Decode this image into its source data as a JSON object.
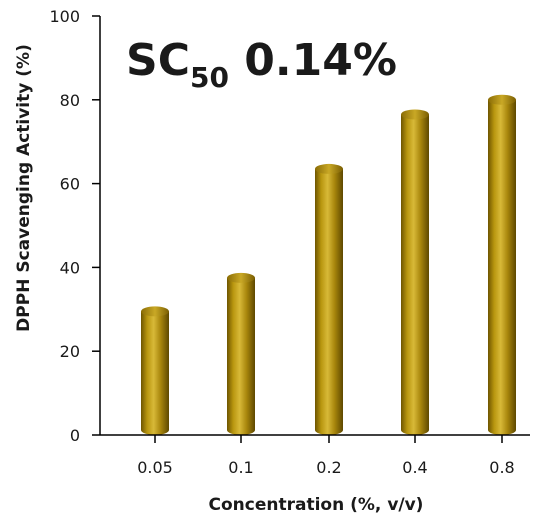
{
  "chart_data": {
    "type": "bar",
    "categories": [
      "0.05",
      "0.1",
      "0.2",
      "0.4",
      "0.8"
    ],
    "values": [
      29.5,
      37.5,
      63.5,
      76.5,
      80
    ],
    "xlabel": "Concentration (%, v/v)",
    "ylabel": "DPPH Scavenging Activity (%)",
    "ylim": [
      0,
      100
    ],
    "yticks": [
      "0",
      "20",
      "40",
      "60",
      "80",
      "100"
    ],
    "annotation": {
      "main": "SC",
      "subscript": "50",
      "value": " 0.14%"
    },
    "bar_color": "#b8960f",
    "bar_style": "3d-cylinder",
    "grid": false,
    "legend": "none"
  }
}
